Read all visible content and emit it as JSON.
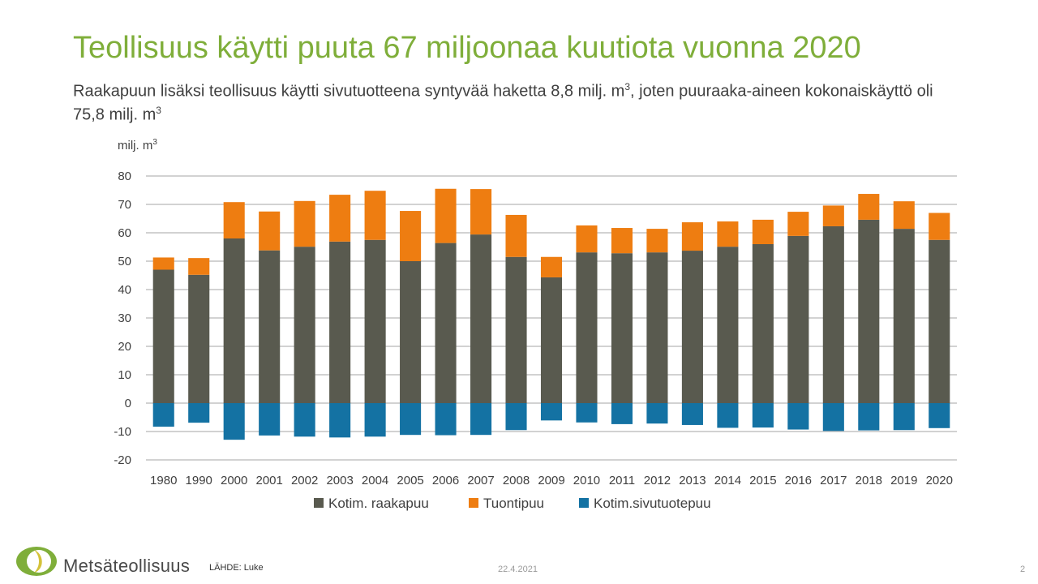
{
  "title": "Teollisuus käytti puuta 67 miljoonaa kuutiota vuonna 2020",
  "subtitle": {
    "part1": "Raakapuun lisäksi teollisuus käytti sivutuotteena syntyvää haketta 8,8 milj. m",
    "sup1": "3",
    "part2": ", joten puuraaka-aineen kokonaiskäyttö oli 75,8 milj. m",
    "sup2": "3"
  },
  "footer": {
    "brand": "Metsäteollisuus",
    "source": "LÄHDE:  Luke",
    "date": "22.4.2021",
    "page": "2"
  },
  "colors": {
    "title": "#7fae3a",
    "raakapuu": "#595a4f",
    "tuontipuu": "#ee7d11",
    "sivutuotepuu": "#1472a3",
    "grid": "#a6a6a6"
  },
  "chart_data": {
    "type": "bar",
    "stacked": true,
    "ylabel": "milj. m",
    "ylabel_sup": "3",
    "ylim": [
      -20,
      80
    ],
    "yticks": [
      -20,
      -10,
      0,
      10,
      20,
      30,
      40,
      50,
      60,
      70,
      80
    ],
    "grid": true,
    "legend_position": "bottom",
    "categories": [
      "1980",
      "1990",
      "2000",
      "2001",
      "2002",
      "2003",
      "2004",
      "2005",
      "2006",
      "2007",
      "2008",
      "2009",
      "2010",
      "2011",
      "2012",
      "2013",
      "2014",
      "2015",
      "2016",
      "2017",
      "2018",
      "2019",
      "2020"
    ],
    "series": [
      {
        "name": "Kotim. raakapuu",
        "color": "#595a4f",
        "values": [
          47,
          45.2,
          58,
          53.8,
          55.1,
          56.9,
          57.5,
          50,
          56.4,
          59.4,
          51.5,
          44.3,
          53.1,
          52.8,
          53.1,
          53.7,
          55.1,
          56,
          58.9,
          62.3,
          64.6,
          61.4,
          57.5
        ]
      },
      {
        "name": "Tuontipuu",
        "color": "#ee7d11",
        "values": [
          4.3,
          5.9,
          12.8,
          13.7,
          16.1,
          16.5,
          17.3,
          17.7,
          19.1,
          16,
          14.8,
          7.2,
          9.5,
          8.9,
          8.3,
          10,
          8.9,
          8.6,
          8.5,
          7.3,
          9.1,
          9.7,
          9.5
        ]
      },
      {
        "name": "Kotim.sivutuotepuu",
        "color": "#1472a3",
        "values": [
          -8.3,
          -6.9,
          -12.9,
          -11.4,
          -11.8,
          -12.1,
          -11.8,
          -11.2,
          -11.3,
          -11.2,
          -9.5,
          -6.1,
          -6.8,
          -7.4,
          -7.2,
          -7.7,
          -8.7,
          -8.6,
          -9.3,
          -9.8,
          -9.6,
          -9.5,
          -8.8
        ]
      }
    ]
  }
}
